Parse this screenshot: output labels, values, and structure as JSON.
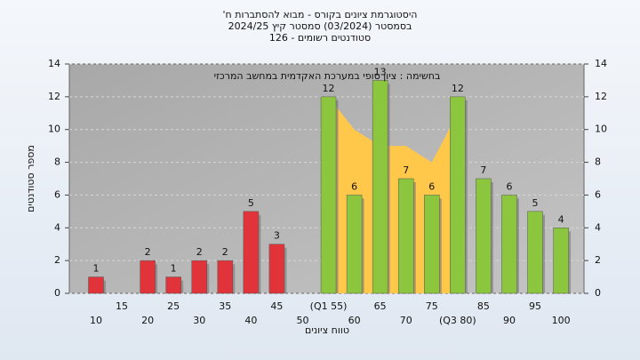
{
  "chart_data": {
    "type": "bar",
    "title": "היסטוגרמת ציונים בקורס - מבוא להסתברות ח'",
    "subtitle": "בסמסטר (03/2024) סמסטר קיץ 2024/25",
    "subtitle2": "סטודנטים רשומים - 126",
    "annotation": "בחשימה : ציון סופי במערכת האקדמית במחשב המרכזי",
    "xlabel": "טווח ציונים",
    "ylabel": "מספר סטודנטים",
    "categories": [
      "10",
      "15",
      "20",
      "25",
      "30",
      "35",
      "40",
      "45",
      "50",
      "(Q1 55)",
      "60",
      "65",
      "70",
      "75",
      "(Q3 80)",
      "85",
      "90",
      "95",
      "100"
    ],
    "values": [
      1,
      null,
      2,
      1,
      2,
      2,
      5,
      3,
      null,
      12,
      6,
      13,
      7,
      6,
      12,
      7,
      6,
      5,
      4
    ],
    "colors": [
      "#e0343a",
      null,
      "#e0343a",
      "#e0343a",
      "#e0343a",
      "#e0343a",
      "#e0343a",
      "#e0343a",
      null,
      "#8cc63f",
      "#8cc63f",
      "#8cc63f",
      "#8cc63f",
      "#8cc63f",
      "#8cc63f",
      "#8cc63f",
      "#8cc63f",
      "#8cc63f",
      "#8cc63f"
    ],
    "band": {
      "color": "#ffc84a",
      "start": 9,
      "values": [
        12,
        10,
        9,
        9,
        8,
        11
      ]
    },
    "ylim": [
      0,
      14
    ],
    "yticks": [
      0,
      2,
      4,
      6,
      8,
      10,
      12,
      14
    ],
    "grid": true
  }
}
